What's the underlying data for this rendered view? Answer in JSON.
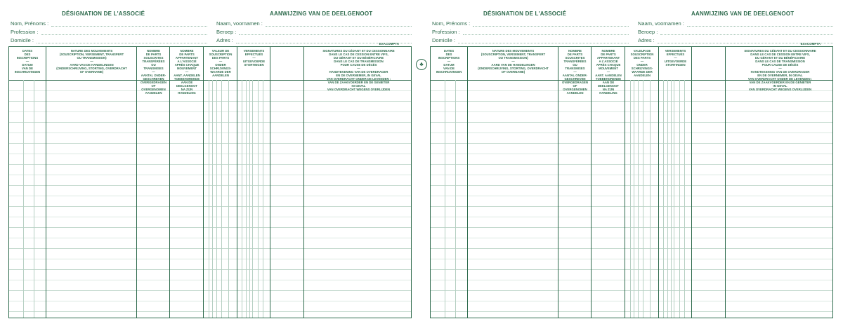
{
  "title_fr": "DÉSIGNATION DE L'ASSOCIÉ",
  "title_nl": "AANWIJZING VAN DE DEELGENOOT",
  "fields_fr": [
    "Nom, Prénoms :",
    "Profession :",
    "Domicile :"
  ],
  "fields_nl": [
    "Naam, voornamen :",
    "Beroep :",
    "Adres :"
  ],
  "brand": "EXACOMPTA",
  "columns": [
    "DATES\nDES\nINSCRIPTIONS\n—\nDATUM\nVAN DE\nINSCHRIJVINGEN",
    "NATURE DES MOUVEMENTS\n(SOUSCRIPTION, VERSEMENT, TRANSFERT\nOU TRANSMISSION)\n—\nAARD VAN DE HANDELINGEN\n(ONDERSCHRIJVING, STORTING, OVERDRACHT\nOF OVERNAME)",
    "NOMBRE\nDE PARTS\nSOUSCRITES\nTRANSFÉRÉES\nOU\nTRANSMISES\n—\nAANTAL ONDER-\nGESCHREVEN\nOVERGEDRAGEN\nOF\nOVERGENOMEN\nAANDELEN",
    "NOMBRE\nDE PARTS\nAPPARTENANT\nA L'ASSOCIÉ\nAPRÈS CHAQUE\nMOUVEMENT\n—\nAANT. AANDELEN\nTOEBEHORENDE\nAAN DE\nDEELGENOOT\nNA ZIJN\nHANDELING",
    "VALEUR DE\nSOUSCRIPTION\nDES PARTS\n—\nONDER\nSCHRIJVINGS-\nWAARDE DER\nAANDELEN",
    "VERSEMENTS\nEFFECTUÉS\n—\nUITGEVOERDE\nSTORTINGEN",
    "",
    "SIGNATURES DU CÉDANT ET DU CESSIONNAIRE\nDANS LE CAS DE CESSION ENTRE VIFS,\nDU GÉRANT ET DU BÉNÉFICIAIRE\nDANS LE CAS DE TRANSMISSION\nPOUR CAUSE DE DÉCÈS\n—\nHANDTEKENING VAN DE OVERDRAGER\nEN DE OVERNEMER, IN GEVAL\nVAN OVERDRACHT ONDER DE LEVENDEN :\nVAN DE ZAAKVOERDER EN DE GENIETER\nIN GEVAL\nVAN OVERDRACHT WEGENS OVERLIJDEN"
  ],
  "colors": {
    "ink": "#2d6a4c",
    "rule": "#dbe8e1"
  }
}
